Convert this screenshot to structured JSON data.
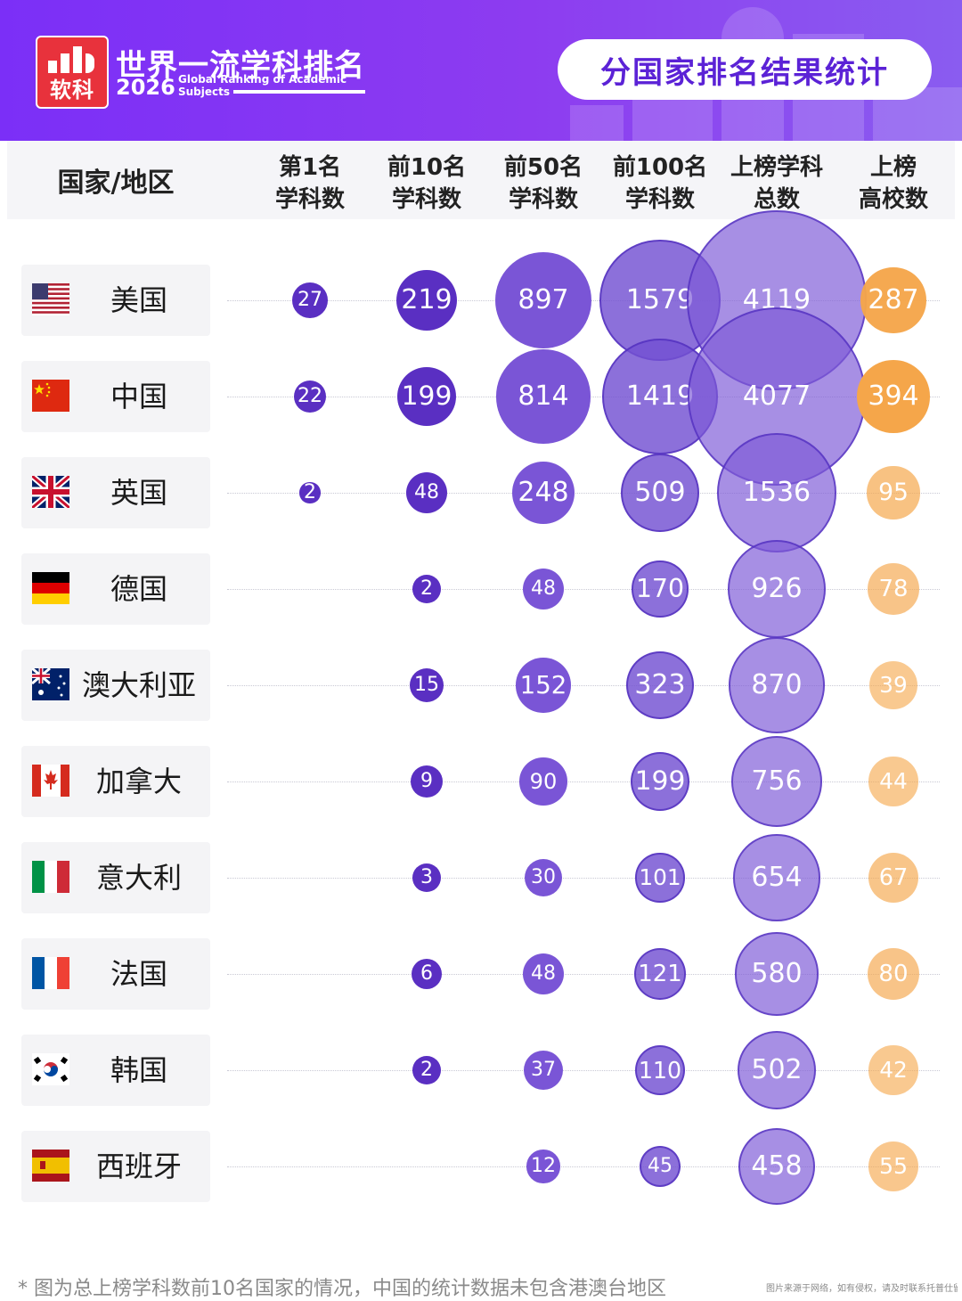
{
  "brand": {
    "logo_text": "软科",
    "title": "世界一流学科排名",
    "year": "2026",
    "subtitle_en": "Global Ranking of Academic Subjects"
  },
  "page_title": "分国家排名结果统计",
  "columns": {
    "country": "国家/地区",
    "c1": [
      "第1名",
      "学科数"
    ],
    "c2": [
      "前10名",
      "学科数"
    ],
    "c3": [
      "前50名",
      "学科数"
    ],
    "c4": [
      "前100名",
      "学科数"
    ],
    "c5": [
      "上榜学科",
      "总数"
    ],
    "c6": [
      "上榜",
      "高校数"
    ]
  },
  "colors": {
    "purple_dark": "#5a2fc2",
    "purple_mid": "#7a55d6",
    "purple_light": "#9778e0",
    "orange": "#f5a64a",
    "header": "#7b2ff7"
  },
  "chart_data": {
    "type": "table",
    "title": "分国家排名结果统计",
    "columns": [
      "第1名学科数",
      "前10名学科数",
      "前50名学科数",
      "前100名学科数",
      "上榜学科总数",
      "上榜高校数"
    ],
    "rows": [
      {
        "country": "美国",
        "flag": "us-flag-icon",
        "values": [
          27,
          219,
          897,
          1579,
          4119,
          287
        ]
      },
      {
        "country": "中国",
        "flag": "china-flag-icon",
        "values": [
          22,
          199,
          814,
          1419,
          4077,
          394
        ]
      },
      {
        "country": "英国",
        "flag": "uk-flag-icon",
        "values": [
          2,
          48,
          248,
          509,
          1536,
          95
        ]
      },
      {
        "country": "德国",
        "flag": "germany-flag-icon",
        "values": [
          null,
          2,
          48,
          170,
          926,
          78
        ]
      },
      {
        "country": "澳大利亚",
        "flag": "australia-flag-icon",
        "values": [
          null,
          15,
          152,
          323,
          870,
          39
        ]
      },
      {
        "country": "加拿大",
        "flag": "canada-flag-icon",
        "values": [
          null,
          9,
          90,
          199,
          756,
          44
        ]
      },
      {
        "country": "意大利",
        "flag": "italy-flag-icon",
        "values": [
          null,
          3,
          30,
          101,
          654,
          67
        ]
      },
      {
        "country": "法国",
        "flag": "france-flag-icon",
        "values": [
          null,
          6,
          48,
          121,
          580,
          80
        ]
      },
      {
        "country": "韩国",
        "flag": "korea-flag-icon",
        "values": [
          null,
          2,
          37,
          110,
          502,
          42
        ]
      },
      {
        "country": "西班牙",
        "flag": "spain-flag-icon",
        "values": [
          null,
          null,
          12,
          45,
          458,
          55
        ]
      }
    ]
  },
  "footer": {
    "note": "* 图为总上榜学科数前10名国家的情况，中国的统计数据未包含港澳台地区",
    "credit": "图片来源于网络，如有侵权，请及时联系托普仕留学删"
  }
}
